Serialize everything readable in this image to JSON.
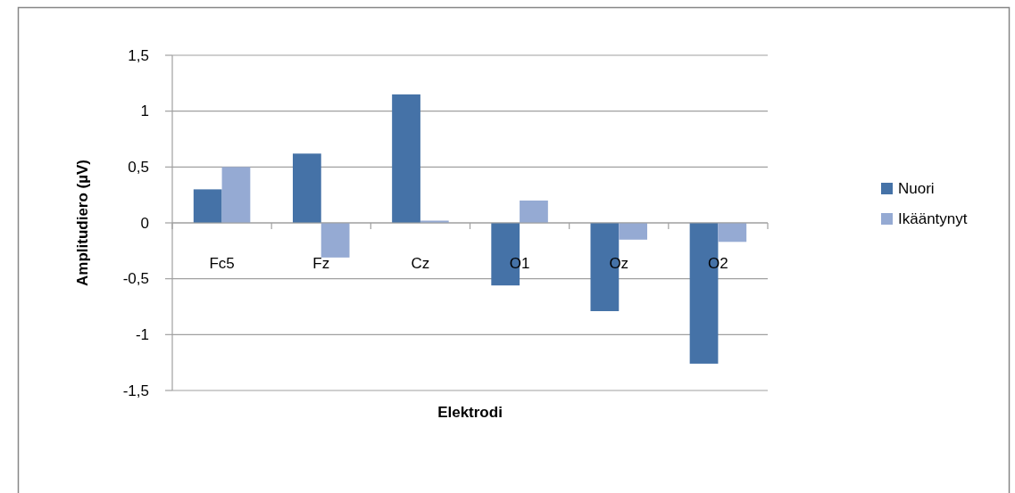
{
  "chart_data": {
    "type": "bar",
    "xlabel": "Elektrodi",
    "ylabel": "Amplitudiero (µV)",
    "categories": [
      "Fc5",
      "Fz",
      "Cz",
      "O1",
      "Oz",
      "O2"
    ],
    "series": [
      {
        "name": "Nuori",
        "color": "#4572a7",
        "values": [
          0.3,
          0.62,
          1.15,
          -0.56,
          -0.79,
          -1.26
        ]
      },
      {
        "name": "Ikääntynyt",
        "color": "#95aad3",
        "values": [
          0.5,
          -0.31,
          0.02,
          0.2,
          -0.15,
          -0.17
        ]
      }
    ],
    "ylim": [
      -1.5,
      1.5
    ],
    "yticks": [
      {
        "value": -1.5,
        "label": "-1,5"
      },
      -1,
      {
        "value": -0.5,
        "label": "-0,5"
      },
      0,
      {
        "value": 0.5,
        "label": "0,5"
      },
      1,
      {
        "value": 1.5,
        "label": "1,5"
      }
    ],
    "grid": "y",
    "legend": "right"
  }
}
